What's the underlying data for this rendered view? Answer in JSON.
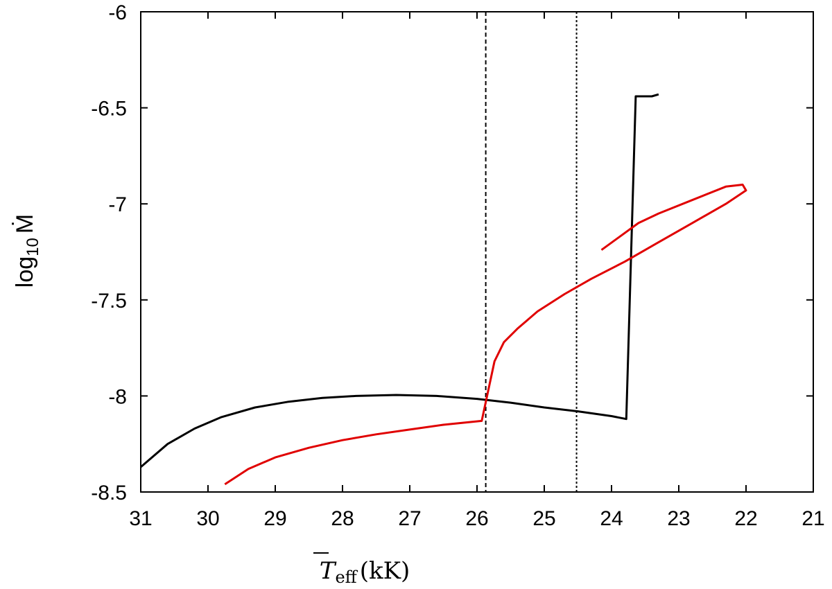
{
  "chart_data": {
    "type": "line",
    "title": "",
    "xlabel": {
      "symbol": "T",
      "subscript": "eff",
      "unit": "(kK)"
    },
    "ylabel": {
      "prefix": "log",
      "subscript": "10",
      "symbol": "Ṁ"
    },
    "xlim": [
      31,
      21
    ],
    "ylim": [
      -8.5,
      -6
    ],
    "x_reversed": true,
    "grid": false,
    "legend": "none",
    "x_ticks": [
      31,
      30,
      29,
      28,
      27,
      26,
      25,
      24,
      23,
      22,
      21
    ],
    "y_ticks": [
      -6,
      -6.5,
      -7,
      -7.5,
      -8,
      -8.5
    ],
    "x_tick_labels": [
      "31",
      "30",
      "29",
      "28",
      "27",
      "26",
      "25",
      "24",
      "23",
      "22",
      "21"
    ],
    "y_tick_labels": [
      "-6",
      "-6.5",
      "-7",
      "-7.5",
      "-8",
      "-8.5"
    ],
    "vertical_lines": [
      {
        "x": 25.87,
        "style": "dashed",
        "color": "#000000"
      },
      {
        "x": 24.52,
        "style": "dotted",
        "color": "#000000"
      }
    ],
    "series": [
      {
        "color": "#000000",
        "points": [
          [
            31.0,
            -8.37
          ],
          [
            30.6,
            -8.25
          ],
          [
            30.2,
            -8.17
          ],
          [
            29.8,
            -8.11
          ],
          [
            29.3,
            -8.06
          ],
          [
            28.8,
            -8.03
          ],
          [
            28.3,
            -8.01
          ],
          [
            27.8,
            -8.0
          ],
          [
            27.2,
            -7.995
          ],
          [
            26.6,
            -8.0
          ],
          [
            26.0,
            -8.015
          ],
          [
            25.5,
            -8.035
          ],
          [
            25.0,
            -8.06
          ],
          [
            24.5,
            -8.08
          ],
          [
            24.0,
            -8.105
          ],
          [
            23.78,
            -8.12
          ],
          [
            23.64,
            -6.44
          ],
          [
            23.4,
            -6.44
          ],
          [
            23.3,
            -6.43
          ]
        ]
      },
      {
        "color": "#e00000",
        "points": [
          [
            29.75,
            -8.46
          ],
          [
            29.4,
            -8.38
          ],
          [
            29.0,
            -8.32
          ],
          [
            28.5,
            -8.27
          ],
          [
            28.0,
            -8.23
          ],
          [
            27.5,
            -8.2
          ],
          [
            27.0,
            -8.175
          ],
          [
            26.5,
            -8.15
          ],
          [
            25.93,
            -8.13
          ],
          [
            25.74,
            -7.82
          ],
          [
            25.6,
            -7.72
          ],
          [
            25.4,
            -7.65
          ],
          [
            25.1,
            -7.56
          ],
          [
            24.7,
            -7.47
          ],
          [
            24.3,
            -7.39
          ],
          [
            23.8,
            -7.3
          ],
          [
            23.3,
            -7.2
          ],
          [
            22.8,
            -7.1
          ],
          [
            22.3,
            -7.0
          ],
          [
            22.0,
            -6.93
          ],
          [
            22.05,
            -6.9
          ],
          [
            22.3,
            -6.91
          ],
          [
            22.8,
            -6.98
          ],
          [
            23.3,
            -7.05
          ],
          [
            23.6,
            -7.1
          ],
          [
            24.15,
            -7.24
          ]
        ]
      }
    ]
  }
}
